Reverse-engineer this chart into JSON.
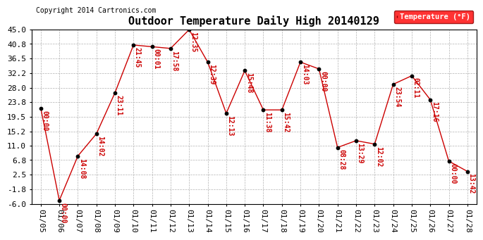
{
  "title": "Outdoor Temperature Daily High 20140129",
  "copyright": "Copyright 2014 Cartronics.com",
  "legend_label": "Temperature (°F)",
  "dates": [
    "01/05",
    "01/06",
    "01/07",
    "01/08",
    "01/09",
    "01/10",
    "01/11",
    "01/12",
    "01/13",
    "01/14",
    "01/15",
    "01/16",
    "01/17",
    "01/18",
    "01/19",
    "01/20",
    "01/21",
    "01/22",
    "01/23",
    "01/24",
    "01/25",
    "01/26",
    "01/27",
    "01/28"
  ],
  "temps": [
    22.0,
    -5.0,
    8.0,
    14.5,
    26.5,
    40.5,
    40.0,
    39.5,
    45.0,
    35.5,
    20.5,
    33.0,
    21.5,
    21.5,
    35.5,
    33.5,
    10.5,
    12.5,
    11.5,
    29.0,
    31.5,
    24.5,
    6.5,
    3.5
  ],
  "times": [
    "00:00",
    "00:00",
    "14:08",
    "14:02",
    "23:11",
    "21:45",
    "00:01",
    "17:58",
    "12:35",
    "12:39",
    "12:13",
    "15:48",
    "11:38",
    "15:42",
    "14:03",
    "00:00",
    "08:28",
    "13:29",
    "12:02",
    "23:54",
    "02:11",
    "17:16",
    "00:00",
    "13:42"
  ],
  "yticks": [
    45.0,
    40.8,
    36.5,
    32.2,
    28.0,
    23.8,
    19.5,
    15.2,
    11.0,
    6.8,
    2.5,
    -1.8,
    -6.0
  ],
  "ylim_min": -6.0,
  "ylim_max": 45.0,
  "line_color": "#cc0000",
  "marker_color": "#000000",
  "annotation_color": "#cc0000",
  "bg_color": "#ffffff",
  "grid_color": "#aaaaaa",
  "title_fontsize": 11,
  "tick_fontsize": 8,
  "annotation_fontsize": 7,
  "copyright_fontsize": 7
}
